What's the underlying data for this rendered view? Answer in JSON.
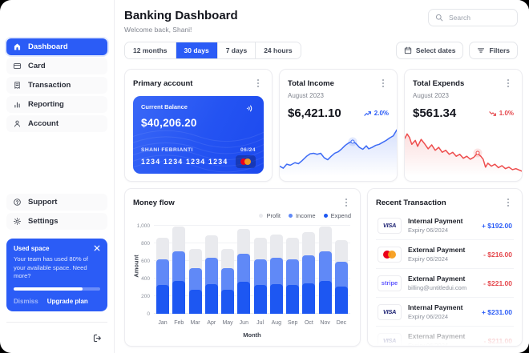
{
  "app": {
    "accent": "#2b5cf6",
    "negative": "#e5484d"
  },
  "sidebar": {
    "items": [
      {
        "label": "Dashboard",
        "icon": "home-icon",
        "active": true
      },
      {
        "label": "Card",
        "icon": "credit-card-icon",
        "active": false
      },
      {
        "label": "Transaction",
        "icon": "receipt-icon",
        "active": false
      },
      {
        "label": "Reporting",
        "icon": "bar-chart-icon",
        "active": false
      },
      {
        "label": "Account",
        "icon": "user-icon",
        "active": false
      }
    ],
    "secondary_items": [
      {
        "label": "Support",
        "icon": "help-circle-icon"
      },
      {
        "label": "Settings",
        "icon": "gear-icon"
      }
    ],
    "used_space": {
      "title": "Used space",
      "body": "Your team has used 80% of your available space. Need more?",
      "percent_used": 80,
      "dismiss_label": "Dismiss",
      "upgrade_label": "Upgrade plan"
    }
  },
  "header": {
    "title": "Banking Dashboard",
    "subtitle": "Welcome back, Shani!",
    "search_placeholder": "Search"
  },
  "toolbar": {
    "ranges": [
      "12 months",
      "30 days",
      "7 days",
      "24 hours"
    ],
    "active_range": "30 days",
    "select_dates_label": "Select dates",
    "filters_label": "Filters"
  },
  "primary_account": {
    "title": "Primary account",
    "balance_label": "Current Balance",
    "balance": "$40,206.20",
    "holder": "SHANI FEBRIANTI",
    "expiry": "06/24",
    "card_number": "1234 1234 1234 1234"
  },
  "total_income": {
    "title": "Total Income",
    "period": "August 2023",
    "amount": "$6,421.10",
    "change": "2.0%",
    "trend": "up"
  },
  "total_expends": {
    "title": "Total Expends",
    "period": "August 2023",
    "amount": "$561.34",
    "change": "1.0%",
    "trend": "down"
  },
  "transactions": {
    "title": "Recent Transaction",
    "rows": [
      {
        "brand": "visa",
        "brand_label": "VISA",
        "title": "Internal Payment",
        "subtitle": "Expiry 06/2024",
        "amount": "+ $192.00",
        "direction": "credit",
        "faded": false
      },
      {
        "brand": "mastercard",
        "brand_label": "",
        "title": "External Payment",
        "subtitle": "Expiry 06/2024",
        "amount": "- $216.00",
        "direction": "debit",
        "faded": false
      },
      {
        "brand": "stripe",
        "brand_label": "stripe",
        "title": "External Payment",
        "subtitle": "billing@untitledui.com",
        "amount": "- $221.00",
        "direction": "debit",
        "faded": false
      },
      {
        "brand": "visa",
        "brand_label": "VISA",
        "title": "Internal Payment",
        "subtitle": "Expiry 06/2024",
        "amount": "+ $231.00",
        "direction": "credit",
        "faded": false
      },
      {
        "brand": "visa",
        "brand_label": "VISA",
        "title": "External Payment",
        "subtitle": "Expiry 06/2024",
        "amount": "- $211.00",
        "direction": "debit",
        "faded": true
      }
    ]
  },
  "chart_data": [
    {
      "id": "money-flow",
      "type": "bar",
      "title": "Money flow",
      "xlabel": "Month",
      "ylabel": "Amount",
      "ylim": [
        0,
        1000
      ],
      "yticks": [
        0,
        200,
        400,
        600,
        800,
        1000
      ],
      "ytick_labels": [
        "0",
        "200",
        "400",
        "600",
        "800",
        "1,000"
      ],
      "categories": [
        "Jan",
        "Feb",
        "Mar",
        "Apr",
        "May",
        "Jun",
        "Jul",
        "Aug",
        "Sep",
        "Oct",
        "Nov",
        "Dec"
      ],
      "legend_position": "top-right",
      "bar_style": "layered-from-zero",
      "series": [
        {
          "name": "Profit",
          "color": "#e9eaee",
          "tops": [
            860,
            990,
            735,
            895,
            735,
            960,
            860,
            900,
            860,
            930,
            990,
            835
          ]
        },
        {
          "name": "Income",
          "color": "#6089f7",
          "tops": [
            615,
            710,
            520,
            635,
            520,
            685,
            615,
            635,
            615,
            660,
            710,
            590
          ]
        },
        {
          "name": "Expend",
          "color": "#1d57f2",
          "tops": [
            330,
            375,
            275,
            340,
            275,
            360,
            330,
            340,
            330,
            350,
            375,
            310
          ]
        }
      ]
    },
    {
      "id": "income-trend",
      "type": "line",
      "title": "Total Income trend",
      "color": "#3d6bf5",
      "area_fill": "#d6e0fc",
      "points": [
        [
          0,
          20
        ],
        [
          3,
          16
        ],
        [
          6,
          24
        ],
        [
          9,
          22
        ],
        [
          13,
          27
        ],
        [
          16,
          25
        ],
        [
          19,
          31
        ],
        [
          23,
          40
        ],
        [
          26,
          45
        ],
        [
          29,
          46
        ],
        [
          32,
          44
        ],
        [
          35,
          46
        ],
        [
          38,
          37
        ],
        [
          41,
          33
        ],
        [
          44,
          40
        ],
        [
          47,
          46
        ],
        [
          50,
          49
        ],
        [
          53,
          55
        ],
        [
          56,
          62
        ],
        [
          59,
          67
        ],
        [
          62,
          70
        ],
        [
          65,
          66
        ],
        [
          68,
          58
        ],
        [
          71,
          54
        ],
        [
          74,
          61
        ],
        [
          76,
          55
        ],
        [
          79,
          58
        ],
        [
          82,
          62
        ],
        [
          85,
          64
        ],
        [
          88,
          68
        ],
        [
          91,
          72
        ],
        [
          94,
          77
        ],
        [
          97,
          81
        ],
        [
          100,
          93
        ]
      ],
      "highlight_index": 20
    },
    {
      "id": "expends-trend",
      "type": "line",
      "title": "Total Expends trend",
      "color": "#ee4d4d",
      "area_fill": "#fbdfdf",
      "points": [
        [
          0,
          76
        ],
        [
          2,
          85
        ],
        [
          4,
          78
        ],
        [
          6,
          64
        ],
        [
          9,
          72
        ],
        [
          11,
          60
        ],
        [
          14,
          74
        ],
        [
          17,
          65
        ],
        [
          20,
          55
        ],
        [
          23,
          63
        ],
        [
          26,
          52
        ],
        [
          29,
          58
        ],
        [
          32,
          48
        ],
        [
          35,
          52
        ],
        [
          38,
          44
        ],
        [
          41,
          48
        ],
        [
          44,
          40
        ],
        [
          47,
          44
        ],
        [
          50,
          36
        ],
        [
          53,
          40
        ],
        [
          56,
          34
        ],
        [
          59,
          38
        ],
        [
          62,
          46
        ],
        [
          65,
          40
        ],
        [
          67,
          34
        ],
        [
          69,
          18
        ],
        [
          71,
          26
        ],
        [
          74,
          20
        ],
        [
          77,
          24
        ],
        [
          80,
          17
        ],
        [
          83,
          21
        ],
        [
          86,
          15
        ],
        [
          89,
          18
        ],
        [
          92,
          13
        ],
        [
          95,
          15
        ],
        [
          100,
          10
        ]
      ],
      "highlight_index": 22
    }
  ]
}
